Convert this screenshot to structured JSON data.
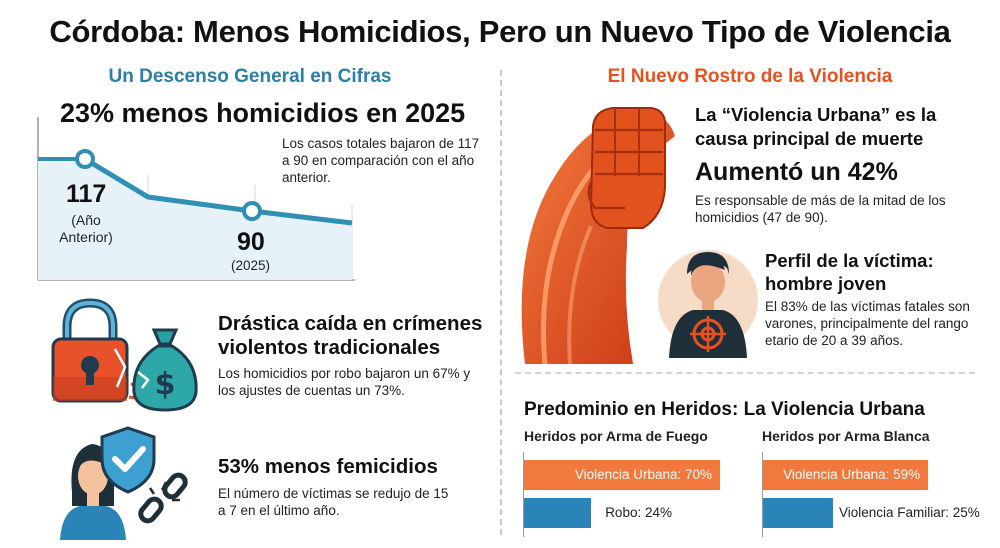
{
  "title": "Córdoba: Menos Homicidios, Pero un Nuevo Tipo de Violencia",
  "left": {
    "heading": "Un Descenso General en Cifras",
    "headline_stat": "23% menos homicidios en 2025",
    "chart_text": "Los casos totales bajaron de 117 a 90 en comparación con el año anterior.",
    "chart_data": {
      "type": "line",
      "x": [
        "Año Anterior",
        "2025"
      ],
      "values": [
        117,
        90
      ]
    },
    "value_prev": "117",
    "label_prev": "(Año Anterior)",
    "value_curr": "90",
    "label_curr": "(2025)",
    "block1_title": "Drástica caída en crímenes violentos tradicionales",
    "block1_text": "Los homicidios por robo bajaron un 67% y los ajustes de cuentas un 73%.",
    "block2_title": "53% menos femicidios",
    "block2_text": "El número de víctimas se redujo de 15 a 7 en el último año."
  },
  "right": {
    "heading": "El Nuevo Rostro de la Violencia",
    "block1_title": "La “Violencia Urbana” es la causa principal de muerte",
    "block1_big": "Aumentó un 42%",
    "block1_text": "Es responsable de más de la mitad de los homicidios (47 de 90).",
    "block2_title": "Perfil de la víctima: hombre joven",
    "block2_text": "El 83% de las víctimas fatales son varones, principalmente del rango etario de 20 a 39 años."
  },
  "wounded": {
    "title": "Predominio en Heridos: La Violencia Urbana",
    "chart_data": [
      {
        "type": "bar",
        "title": "Heridos por Arma de Fuego",
        "categories": [
          "Violencia Urbana",
          "Robo"
        ],
        "values": [
          70,
          24
        ],
        "labels": [
          "Violencia Urbana: 70%",
          "Robo: 24%"
        ]
      },
      {
        "type": "bar",
        "title": "Heridos por Arma Blanca",
        "categories": [
          "Violencia Urbana",
          "Violencia Familiar"
        ],
        "values": [
          59,
          25
        ],
        "labels": [
          "Violencia Urbana: 59%",
          "Violencia Familiar: 25%"
        ]
      }
    ]
  },
  "colors": {
    "blue": "#2a7ea8",
    "orange": "#e8501e",
    "bar_orange": "#f2793d",
    "bar_blue": "#2b84b8"
  },
  "icons": [
    "padlock-icon",
    "money-bag-icon",
    "woman-icon",
    "shield-check-icon",
    "broken-chain-icon",
    "raised-fist-icon",
    "man-target-icon"
  ]
}
